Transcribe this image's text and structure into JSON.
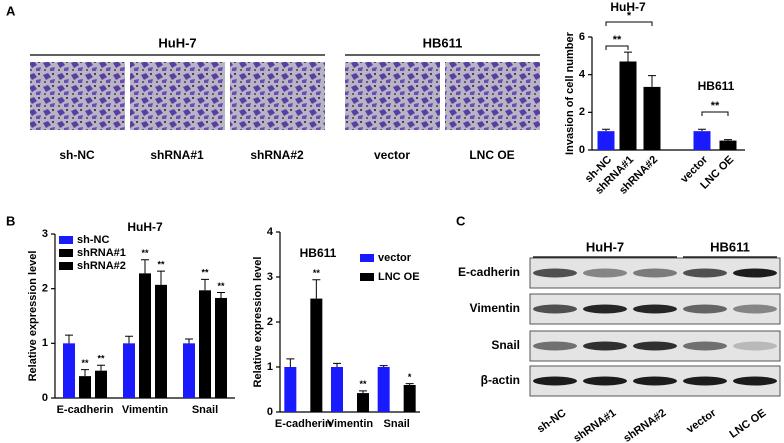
{
  "panel_labels": [
    "A",
    "B",
    "C"
  ],
  "micrographs": {
    "groups": [
      {
        "title": "HuH-7",
        "labels": [
          "sh-NC",
          "shRNA#1",
          "shRNA#2"
        ]
      },
      {
        "title": "HB611",
        "labels": [
          "vector",
          "LNC OE"
        ]
      }
    ]
  },
  "blot": {
    "groups": [
      "HuH-7",
      "HB611"
    ],
    "proteins": [
      "E-cadherin",
      "Vimentin",
      "Snail",
      "β-actin"
    ],
    "lanes": [
      "sh-NC",
      "shRNA#1",
      "shRNA#2",
      "vector",
      "LNC OE"
    ]
  },
  "chart_data": [
    {
      "type": "bar",
      "y_label": "Invasion of cell number",
      "group_titles": [
        "HuH-7",
        "HB611"
      ],
      "categories": [
        "sh-NC",
        "shRNA#1",
        "shRNA#2",
        "vector",
        "LNC OE"
      ],
      "values": [
        1.0,
        4.7,
        3.35,
        1.0,
        0.5
      ],
      "errors": [
        0.1,
        0.5,
        0.6,
        0.1,
        0.05
      ],
      "colors": [
        "#1a1aff",
        "#000000",
        "#000000",
        "#1a1aff",
        "#000000"
      ],
      "significance": [
        "**",
        "*",
        "**"
      ],
      "ylim": [
        0,
        6
      ],
      "yticks": [
        0,
        2,
        4,
        6
      ]
    },
    {
      "type": "grouped_bar",
      "title": "HuH-7",
      "y_label": "Relative expression level",
      "categories": [
        "E-cadherin",
        "Vimentin",
        "Snail"
      ],
      "series": [
        {
          "name": "sh-NC",
          "color": "#1a1aff",
          "values": [
            1.0,
            1.0,
            1.0
          ],
          "errors": [
            0.15,
            0.13,
            0.08
          ],
          "significance": [
            null,
            null,
            null
          ]
        },
        {
          "name": "shRNA#1",
          "color": "#000000",
          "values": [
            0.4,
            2.28,
            1.97
          ],
          "errors": [
            0.12,
            0.25,
            0.2
          ],
          "significance": [
            "**",
            "**",
            "**"
          ]
        },
        {
          "name": "shRNA#2",
          "color": "#000000",
          "values": [
            0.5,
            2.07,
            1.83
          ],
          "errors": [
            0.1,
            0.25,
            0.1
          ],
          "significance": [
            "**",
            "**",
            "**"
          ]
        }
      ],
      "legend": "upper left",
      "ylim": [
        0,
        3
      ],
      "yticks": [
        0,
        1,
        2,
        3
      ]
    },
    {
      "type": "grouped_bar",
      "title": "HB611",
      "y_label": "Relative expression level",
      "categories": [
        "E-cadherin",
        "Vimentin",
        "Snail"
      ],
      "series": [
        {
          "name": "vector",
          "color": "#1a1aff",
          "values": [
            1.0,
            1.0,
            1.0
          ],
          "errors": [
            0.18,
            0.08,
            0.03
          ],
          "significance": [
            null,
            null,
            null
          ]
        },
        {
          "name": "LNC OE",
          "color": "#000000",
          "values": [
            2.52,
            0.42,
            0.6
          ],
          "errors": [
            0.42,
            0.05,
            0.03
          ],
          "significance": [
            "**",
            "**",
            "*"
          ]
        }
      ],
      "legend": "upper right",
      "ylim": [
        0,
        4
      ],
      "yticks": [
        0,
        1,
        2,
        3,
        4
      ]
    }
  ]
}
